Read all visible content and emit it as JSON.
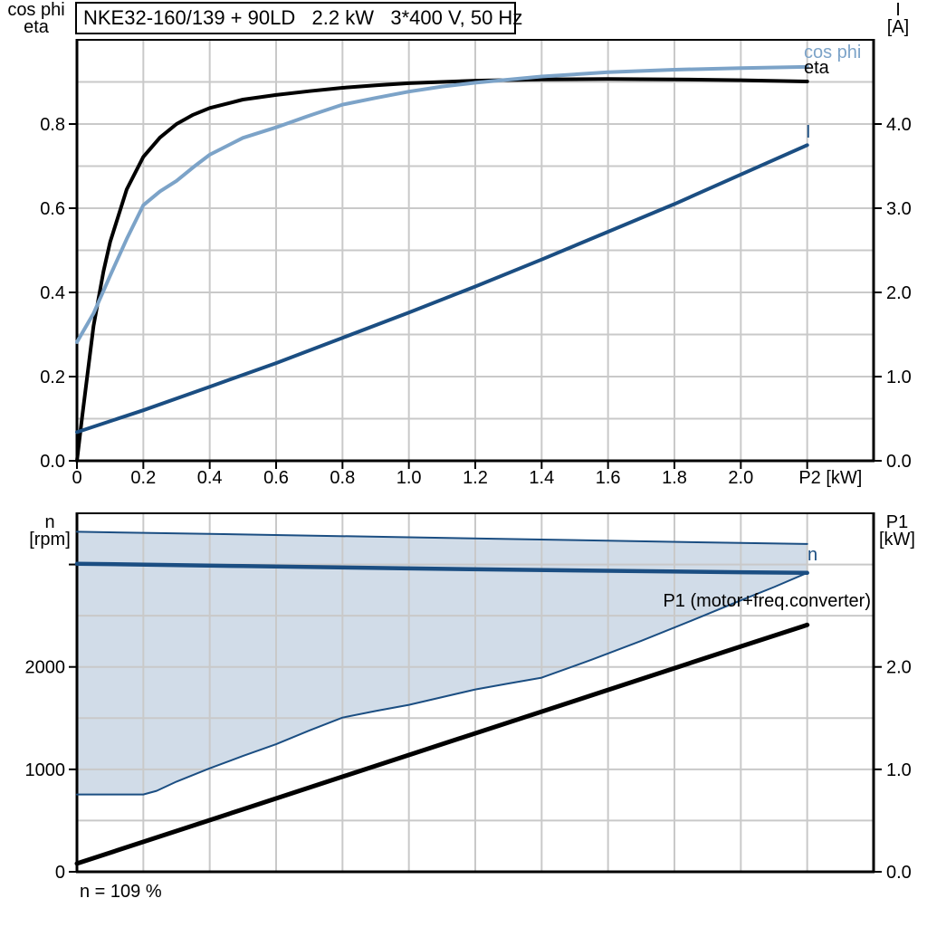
{
  "title_box": {
    "text": "NKE32-160/139 + 90LD   2.2 kW   3*400 V, 50 Hz"
  },
  "labels": {
    "top_left_line1": "cos phi",
    "top_left_line2": "eta",
    "top_right_line1": "I",
    "top_right_line2": "[A]",
    "bottom_left_line1": "n",
    "bottom_left_line2": "[rpm]",
    "bottom_right_line1": "P1",
    "bottom_right_line2": "[kW]"
  },
  "curve_labels": {
    "cos_phi": "cos phi",
    "eta": "eta",
    "current": "I",
    "speed": "n",
    "p1": "P1 (motor+freq.converter)"
  },
  "annotations": {
    "speed_note": "n = 109 %"
  },
  "colors": {
    "steel_blue": "#7CA3C8",
    "navy": "#1B4E82",
    "band_fill": "#D1DCE8",
    "grid": "#C9C9C9",
    "axis": "#000000",
    "background": "#FFFFFF"
  },
  "chart_data": [
    {
      "id": "motor-curves-chart",
      "type": "line",
      "title": "NKE32-160/139 + 90LD   2.2 kW   3*400 V, 50 Hz",
      "x": {
        "label": "P2 [kW]",
        "min": 0,
        "max": 2.4,
        "grid_step": 0.2,
        "title": "P2 [kW]",
        "title_at": 2.27,
        "ticks": [
          {
            "v": 0,
            "t": "0"
          },
          {
            "v": 0.2,
            "t": "0.2"
          },
          {
            "v": 0.4,
            "t": "0.4"
          },
          {
            "v": 0.6,
            "t": "0.6"
          },
          {
            "v": 0.8,
            "t": "0.8"
          },
          {
            "v": 1.0,
            "t": "1.0"
          },
          {
            "v": 1.2,
            "t": "1.2"
          },
          {
            "v": 1.4,
            "t": "1.4"
          },
          {
            "v": 1.6,
            "t": "1.6"
          },
          {
            "v": 1.8,
            "t": "1.8"
          },
          {
            "v": 2.0,
            "t": "2.0"
          },
          {
            "v": 2.2,
            "t": ""
          }
        ]
      },
      "y_left": {
        "label": "cos phi / eta",
        "min": 0,
        "max": 1.0,
        "grid_step": 0.1,
        "ticks": [
          {
            "v": 0,
            "t": "0.0"
          },
          {
            "v": 0.2,
            "t": "0.2"
          },
          {
            "v": 0.4,
            "t": "0.4"
          },
          {
            "v": 0.6,
            "t": "0.6"
          },
          {
            "v": 0.8,
            "t": "0.8"
          }
        ]
      },
      "y_right": {
        "label": "I [A]",
        "min": 0,
        "max": 5.0,
        "grid_step": 0.5,
        "ticks": [
          {
            "v": 0,
            "t": "0.0"
          },
          {
            "v": 1,
            "t": "1.0"
          },
          {
            "v": 2,
            "t": "2.0"
          },
          {
            "v": 3,
            "t": "3.0"
          },
          {
            "v": 4,
            "t": "4.0"
          }
        ]
      },
      "series": [
        {
          "id": "eta",
          "name": "eta",
          "axis": "left",
          "color": "#000000",
          "width": 4,
          "points": [
            [
              0,
              0.0
            ],
            [
              0.015,
              0.1
            ],
            [
              0.05,
              0.32
            ],
            [
              0.08,
              0.45
            ],
            [
              0.1,
              0.52
            ],
            [
              0.15,
              0.645
            ],
            [
              0.2,
              0.722
            ],
            [
              0.25,
              0.768
            ],
            [
              0.3,
              0.8
            ],
            [
              0.35,
              0.822
            ],
            [
              0.4,
              0.838
            ],
            [
              0.5,
              0.858
            ],
            [
              0.6,
              0.869
            ],
            [
              0.7,
              0.878
            ],
            [
              0.8,
              0.886
            ],
            [
              0.9,
              0.892
            ],
            [
              1.0,
              0.897
            ],
            [
              1.2,
              0.903
            ],
            [
              1.4,
              0.906
            ],
            [
              1.6,
              0.907
            ],
            [
              1.8,
              0.906
            ],
            [
              2.0,
              0.904
            ],
            [
              2.2,
              0.901
            ]
          ]
        },
        {
          "id": "cos-phi",
          "name": "cos phi",
          "axis": "left",
          "color": "#7CA3C8",
          "width": 4,
          "points": [
            [
              0,
              0.282
            ],
            [
              0.05,
              0.35
            ],
            [
              0.1,
              0.44
            ],
            [
              0.15,
              0.527
            ],
            [
              0.2,
              0.607
            ],
            [
              0.25,
              0.64
            ],
            [
              0.3,
              0.665
            ],
            [
              0.35,
              0.697
            ],
            [
              0.4,
              0.727
            ],
            [
              0.5,
              0.767
            ],
            [
              0.6,
              0.792
            ],
            [
              0.7,
              0.82
            ],
            [
              0.8,
              0.846
            ],
            [
              0.9,
              0.862
            ],
            [
              1.0,
              0.877
            ],
            [
              1.1,
              0.889
            ],
            [
              1.2,
              0.898
            ],
            [
              1.4,
              0.913
            ],
            [
              1.6,
              0.923
            ],
            [
              1.8,
              0.929
            ],
            [
              2.0,
              0.933
            ],
            [
              2.2,
              0.936
            ]
          ]
        },
        {
          "id": "current",
          "name": "I",
          "axis": "right",
          "color": "#1B4E82",
          "width": 4,
          "points": [
            [
              0,
              0.34
            ],
            [
              0.2,
              0.6
            ],
            [
              0.4,
              0.88
            ],
            [
              0.6,
              1.16
            ],
            [
              0.8,
              1.46
            ],
            [
              1.0,
              1.76
            ],
            [
              1.2,
              2.07
            ],
            [
              1.4,
              2.39
            ],
            [
              1.6,
              2.72
            ],
            [
              1.8,
              3.05
            ],
            [
              2.0,
              3.4
            ],
            [
              2.2,
              3.75
            ]
          ]
        }
      ]
    },
    {
      "id": "speed-power-chart",
      "type": "line",
      "x": {
        "label": "P2 [kW]",
        "min": 0,
        "max": 2.4,
        "grid_step": 0.2,
        "ticks": []
      },
      "y_left": {
        "label": "n [rpm]",
        "min": 0,
        "max": 3500,
        "grid_step": 500,
        "ticks": [
          {
            "v": 0,
            "t": "0"
          },
          {
            "v": 1000,
            "t": "1000"
          },
          {
            "v": 2000,
            "t": "2000"
          },
          {
            "v": 3000,
            "t": ""
          }
        ]
      },
      "y_right": {
        "label": "P1 [kW]",
        "min": 0,
        "max": 3.5,
        "grid_step": 0.5,
        "ticks": [
          {
            "v": 0,
            "t": "0.0"
          },
          {
            "v": 1,
            "t": "1.0"
          },
          {
            "v": 2,
            "t": "2.0"
          }
        ]
      },
      "band": {
        "name": "speed-control-band",
        "fill": "#D1DCE8",
        "upper": [
          [
            0,
            3320
          ],
          [
            0.5,
            3293
          ],
          [
            1.0,
            3266
          ],
          [
            1.5,
            3238
          ],
          [
            2.0,
            3210
          ],
          [
            2.2,
            3200
          ]
        ],
        "lower": [
          [
            0,
            755
          ],
          [
            0.2,
            755
          ],
          [
            0.24,
            790
          ],
          [
            0.3,
            880
          ],
          [
            0.4,
            1010
          ],
          [
            0.5,
            1130
          ],
          [
            0.6,
            1245
          ],
          [
            0.7,
            1380
          ],
          [
            0.8,
            1505
          ],
          [
            0.9,
            1570
          ],
          [
            1.0,
            1630
          ],
          [
            1.1,
            1705
          ],
          [
            1.2,
            1780
          ],
          [
            1.3,
            1838
          ],
          [
            1.4,
            1895
          ],
          [
            1.55,
            2070
          ],
          [
            1.7,
            2255
          ],
          [
            1.85,
            2450
          ],
          [
            2.0,
            2650
          ],
          [
            2.1,
            2780
          ],
          [
            2.2,
            2918
          ]
        ]
      },
      "series": [
        {
          "id": "band-upper",
          "name": "n max envelope",
          "axis": "left",
          "color": "#1B4E82",
          "width": 2,
          "points": [
            [
              0,
              3320
            ],
            [
              0.5,
              3293
            ],
            [
              1.0,
              3266
            ],
            [
              1.5,
              3238
            ],
            [
              2.0,
              3210
            ],
            [
              2.2,
              3200
            ]
          ]
        },
        {
          "id": "band-lower",
          "name": "n min envelope",
          "axis": "left",
          "color": "#1B4E82",
          "width": 2,
          "points": [
            [
              0,
              755
            ],
            [
              0.2,
              755
            ],
            [
              0.24,
              790
            ],
            [
              0.3,
              880
            ],
            [
              0.4,
              1010
            ],
            [
              0.5,
              1130
            ],
            [
              0.6,
              1245
            ],
            [
              0.7,
              1380
            ],
            [
              0.8,
              1505
            ],
            [
              0.9,
              1570
            ],
            [
              1.0,
              1630
            ],
            [
              1.1,
              1705
            ],
            [
              1.2,
              1780
            ],
            [
              1.3,
              1838
            ],
            [
              1.4,
              1895
            ],
            [
              1.55,
              2070
            ],
            [
              1.7,
              2255
            ],
            [
              1.85,
              2450
            ],
            [
              2.0,
              2650
            ],
            [
              2.1,
              2780
            ],
            [
              2.2,
              2918
            ]
          ]
        },
        {
          "id": "speed",
          "name": "n",
          "axis": "left",
          "color": "#1B4E82",
          "width": 4.5,
          "points": [
            [
              0,
              3008
            ],
            [
              0.5,
              2985
            ],
            [
              1.0,
              2962
            ],
            [
              1.5,
              2942
            ],
            [
              2.0,
              2925
            ],
            [
              2.2,
              2918
            ]
          ]
        },
        {
          "id": "p1",
          "name": "P1 (motor+freq.converter)",
          "axis": "right",
          "color": "#000000",
          "width": 5,
          "points": [
            [
              0,
              0.08
            ],
            [
              0.5,
              0.61
            ],
            [
              1.0,
              1.14
            ],
            [
              1.5,
              1.67
            ],
            [
              2.0,
              2.2
            ],
            [
              2.2,
              2.41
            ]
          ]
        }
      ],
      "annotation": "n = 109 %"
    }
  ]
}
